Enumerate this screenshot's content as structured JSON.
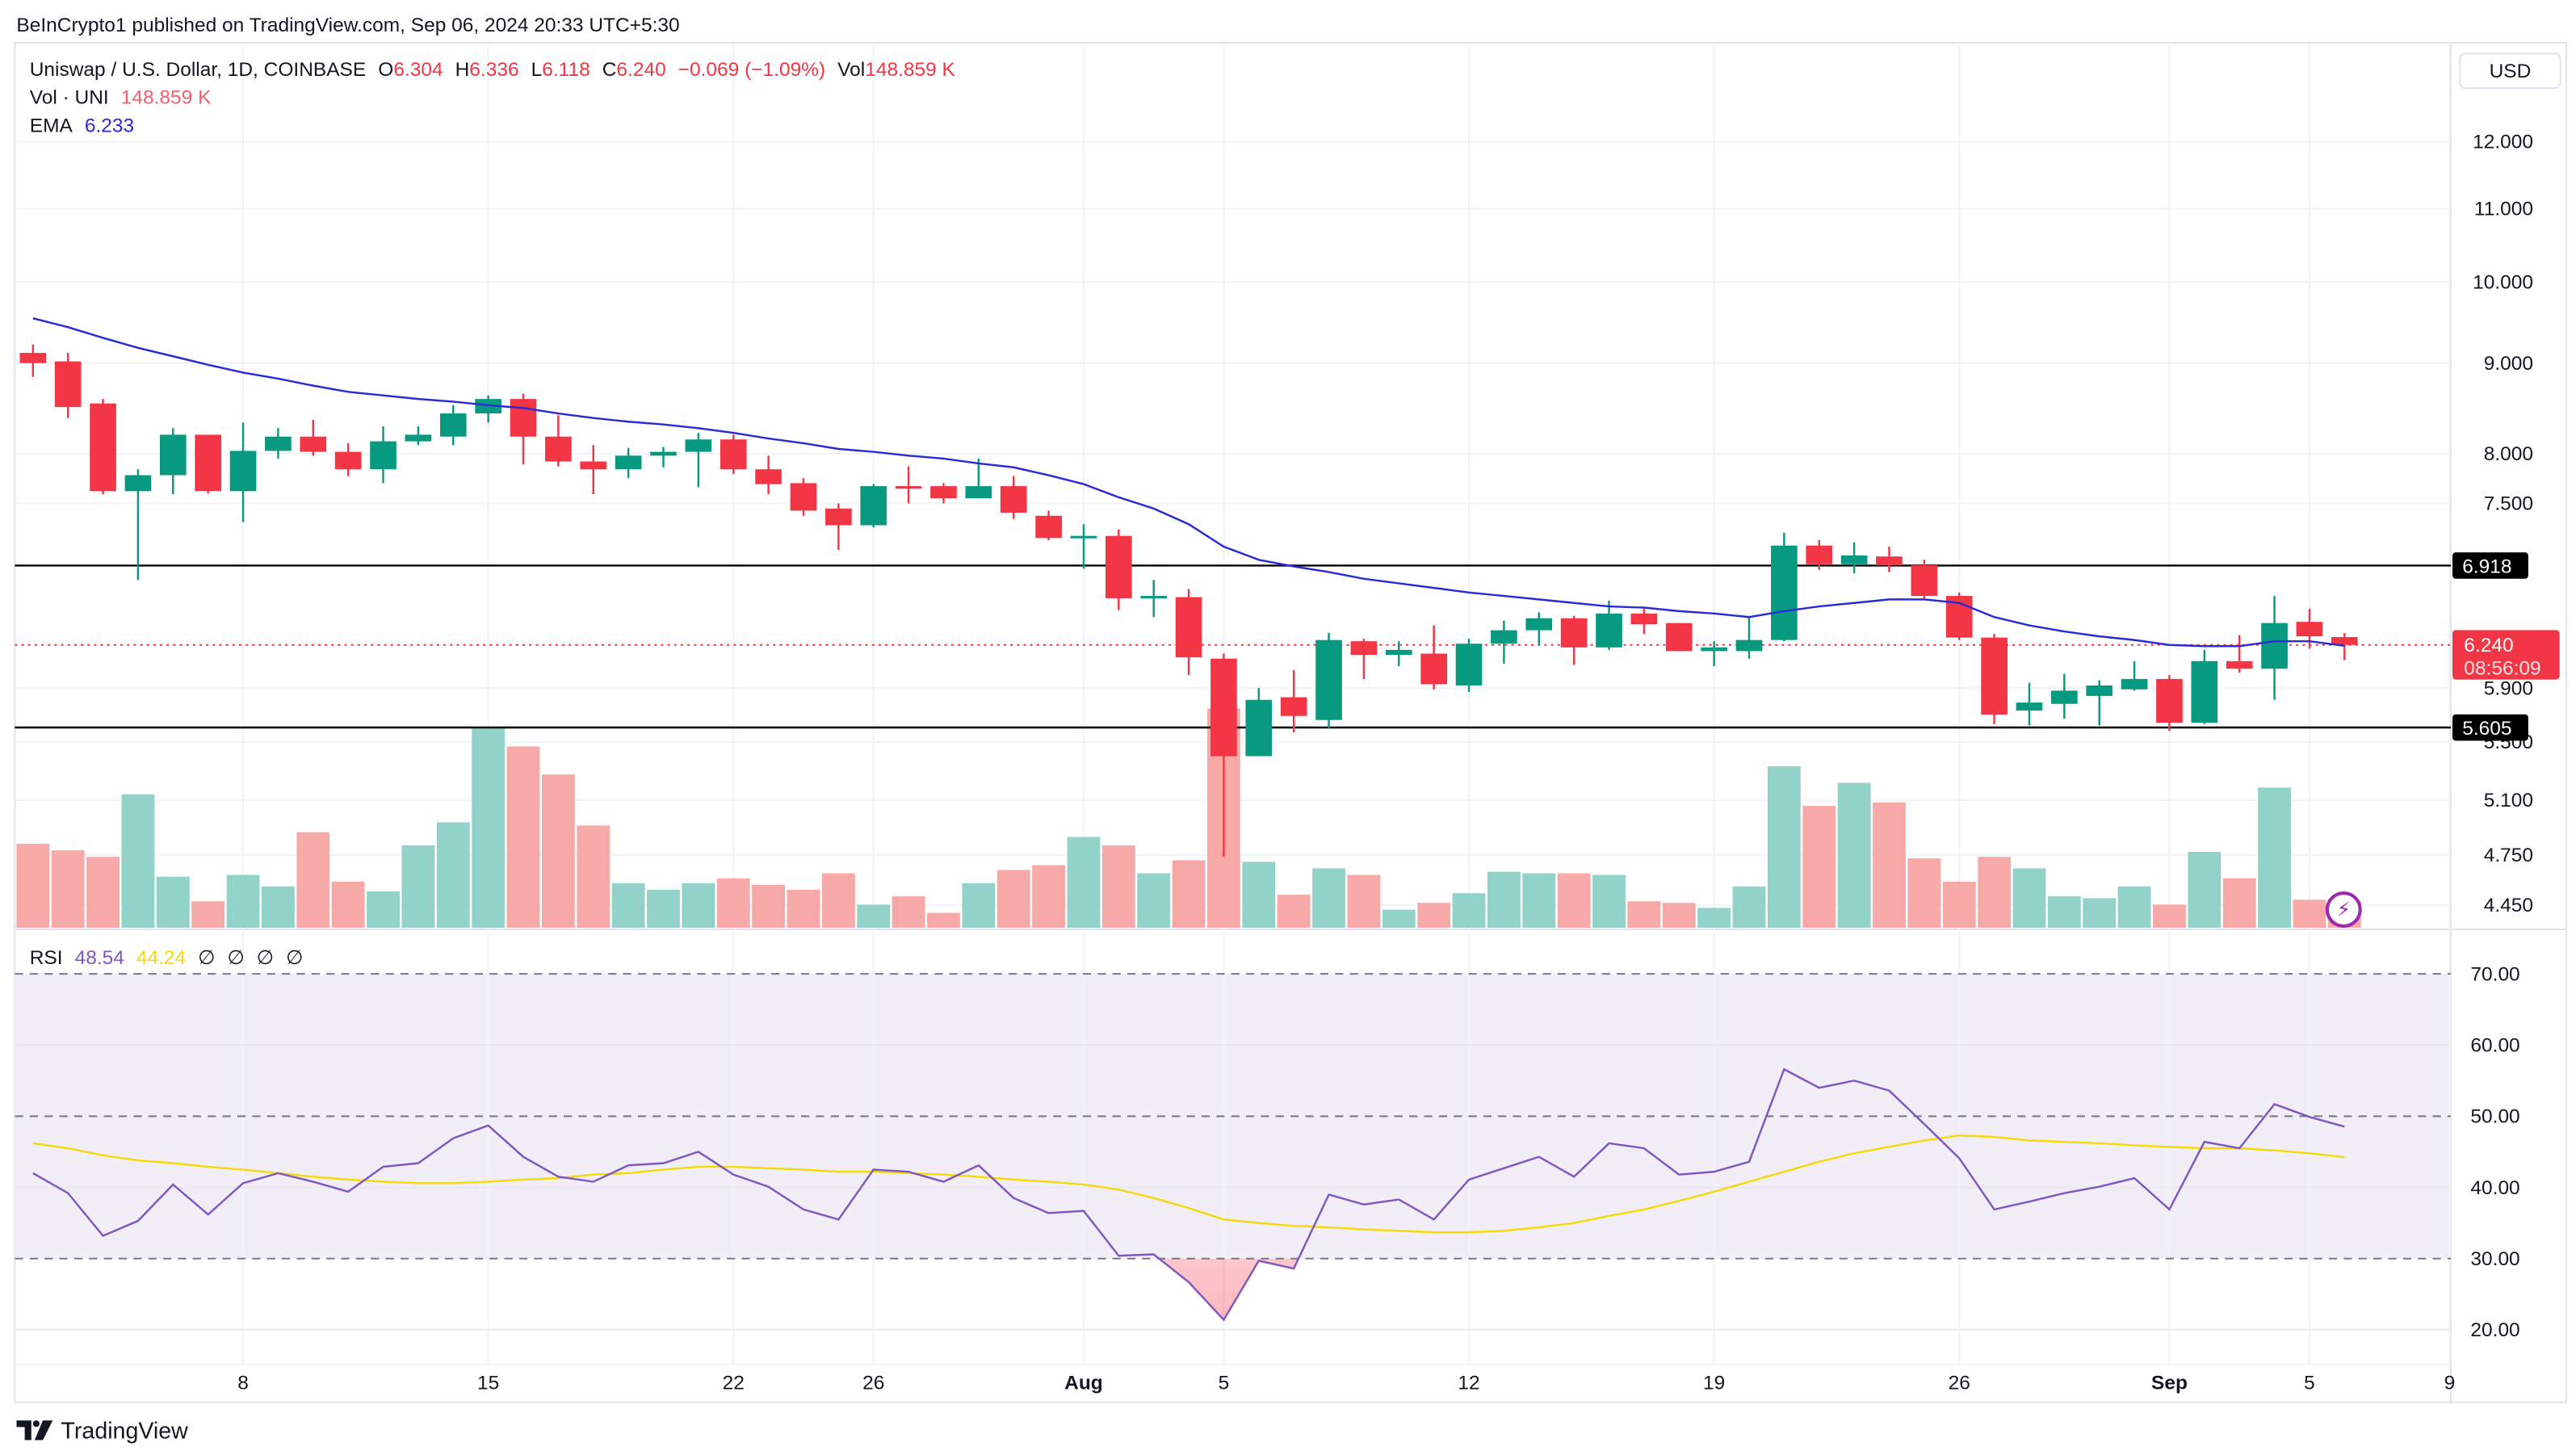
{
  "published": "BeInCrypto1 published on TradingView.com, Sep 06, 2024 20:33 UTC+5:30",
  "legend": {
    "symbol": "Uniswap / U.S. Dollar, 1D, COINBASE",
    "o_label": "O",
    "o": "6.304",
    "h_label": "H",
    "h": "6.336",
    "l_label": "L",
    "l": "6.118",
    "c_label": "C",
    "c": "6.240",
    "change": "−0.069 (−1.09%)",
    "vol_label": "Vol",
    "vol": "148.859 K",
    "vol_ind_label": "Vol · UNI",
    "vol_ind": "148.859 K",
    "ema_label": "EMA",
    "ema": "6.233",
    "rsi_label": "RSI",
    "rsi": "48.54",
    "rsi_ma": "44.24",
    "rsi_empty": [
      "∅",
      "∅",
      "∅",
      "∅"
    ]
  },
  "currency_button": "USD",
  "logo": "TradingView",
  "icons": {
    "alert": "lightning-icon",
    "logo": "tradingview-logo-icon"
  },
  "colors": {
    "up": "#089981",
    "down": "#f23645",
    "up_volume": "#92d2c9",
    "down_volume": "#f7a9a7",
    "ema": "#2a2ad8",
    "rsi": "#7e57c2",
    "rsi_ma": "#f5d90a",
    "rsi_band": "#f1eef8",
    "level_lines": "#000000",
    "alert": "#9c27b0"
  },
  "chart_data": {
    "type": "candlestick",
    "price_scale": "log",
    "grid": true,
    "price_ticks": [
      "12.000",
      "11.000",
      "10.000",
      "9.000",
      "8.000",
      "7.500",
      "5.900",
      "5.500",
      "5.100",
      "4.750",
      "4.450"
    ],
    "horizontal_levels": [
      "6.918",
      "5.605"
    ],
    "last_price": {
      "value": "6.240",
      "countdown": "08:56:09"
    },
    "x_ticks": [
      {
        "date": "2024-07-08",
        "label": "8"
      },
      {
        "date": "2024-07-15",
        "label": "15"
      },
      {
        "date": "2024-07-22",
        "label": "22"
      },
      {
        "date": "2024-07-26",
        "label": "26"
      },
      {
        "date": "2024-08-01",
        "label": "Aug"
      },
      {
        "date": "2024-08-05",
        "label": "5"
      },
      {
        "date": "2024-08-12",
        "label": "12"
      },
      {
        "date": "2024-08-19",
        "label": "19"
      },
      {
        "date": "2024-08-26",
        "label": "26"
      },
      {
        "date": "2024-09-01",
        "label": "Sep"
      },
      {
        "date": "2024-09-05",
        "label": "5"
      },
      {
        "date": "2024-09-09",
        "label": "9"
      }
    ],
    "fields": [
      "date",
      "open",
      "high",
      "low",
      "close",
      "volume_k"
    ],
    "candles": [
      [
        "2024-07-02",
        9.12,
        9.22,
        8.84,
        9.0,
        474
      ],
      [
        "2024-07-03",
        9.02,
        9.12,
        8.38,
        8.5,
        437
      ],
      [
        "2024-07-04",
        8.54,
        8.59,
        7.59,
        7.62,
        400
      ],
      [
        "2024-07-05",
        7.62,
        7.84,
        6.79,
        7.78,
        753
      ],
      [
        "2024-07-06",
        7.78,
        8.27,
        7.59,
        8.2,
        288
      ],
      [
        "2024-07-07",
        8.2,
        8.2,
        7.6,
        7.62,
        149
      ],
      [
        "2024-07-08",
        7.62,
        8.33,
        7.32,
        8.03,
        298
      ],
      [
        "2024-07-09",
        8.03,
        8.27,
        7.95,
        8.18,
        233
      ],
      [
        "2024-07-10",
        8.18,
        8.36,
        7.98,
        8.02,
        539
      ],
      [
        "2024-07-11",
        8.02,
        8.11,
        7.77,
        7.84,
        260
      ],
      [
        "2024-07-12",
        7.84,
        8.29,
        7.7,
        8.13,
        205
      ],
      [
        "2024-07-13",
        8.13,
        8.29,
        8.09,
        8.2,
        465
      ],
      [
        "2024-07-14",
        8.18,
        8.52,
        8.09,
        8.43,
        595
      ],
      [
        "2024-07-15",
        8.43,
        8.63,
        8.33,
        8.59,
        1135
      ],
      [
        "2024-07-16",
        8.59,
        8.65,
        7.89,
        8.18,
        1023
      ],
      [
        "2024-07-17",
        8.18,
        8.41,
        7.87,
        7.92,
        865
      ],
      [
        "2024-07-18",
        7.92,
        8.09,
        7.59,
        7.84,
        577
      ],
      [
        "2024-07-19",
        7.84,
        8.06,
        7.75,
        7.98,
        251
      ],
      [
        "2024-07-20",
        7.98,
        8.07,
        7.86,
        8.02,
        214
      ],
      [
        "2024-07-21",
        8.02,
        8.22,
        7.66,
        8.15,
        251
      ],
      [
        "2024-07-22",
        8.15,
        8.2,
        7.79,
        7.84,
        279
      ],
      [
        "2024-07-23",
        7.84,
        7.98,
        7.59,
        7.69,
        242
      ],
      [
        "2024-07-24",
        7.7,
        7.75,
        7.38,
        7.43,
        214
      ],
      [
        "2024-07-25",
        7.45,
        7.5,
        7.06,
        7.29,
        307
      ],
      [
        "2024-07-26",
        7.29,
        7.69,
        7.27,
        7.67,
        130
      ],
      [
        "2024-07-27",
        7.67,
        7.87,
        7.5,
        7.65,
        177
      ],
      [
        "2024-07-28",
        7.67,
        7.7,
        7.5,
        7.55,
        84
      ],
      [
        "2024-07-29",
        7.55,
        7.95,
        7.55,
        7.67,
        251
      ],
      [
        "2024-07-30",
        7.67,
        7.77,
        7.35,
        7.41,
        326
      ],
      [
        "2024-07-31",
        7.38,
        7.43,
        7.15,
        7.17,
        353
      ],
      [
        "2024-08-01",
        7.17,
        7.3,
        6.89,
        7.19,
        512
      ],
      [
        "2024-08-02",
        7.19,
        7.25,
        6.53,
        6.63,
        465
      ],
      [
        "2024-08-03",
        6.64,
        6.79,
        6.47,
        6.65,
        307
      ],
      [
        "2024-08-04",
        6.64,
        6.71,
        6.0,
        6.14,
        381
      ],
      [
        "2024-08-05",
        6.13,
        6.17,
        4.74,
        5.4,
        1237
      ],
      [
        "2024-08-06",
        5.4,
        5.9,
        5.4,
        5.81,
        372
      ],
      [
        "2024-08-07",
        5.83,
        6.04,
        5.57,
        5.69,
        186
      ],
      [
        "2024-08-08",
        5.66,
        6.34,
        5.6,
        6.28,
        335
      ],
      [
        "2024-08-09",
        6.27,
        6.29,
        5.97,
        6.16,
        298
      ],
      [
        "2024-08-10",
        6.16,
        6.27,
        6.07,
        6.2,
        102
      ],
      [
        "2024-08-11",
        6.17,
        6.4,
        5.89,
        5.93,
        140
      ],
      [
        "2024-08-12",
        5.92,
        6.29,
        5.87,
        6.25,
        195
      ],
      [
        "2024-08-13",
        6.25,
        6.44,
        6.09,
        6.36,
        316
      ],
      [
        "2024-08-14",
        6.36,
        6.51,
        6.24,
        6.46,
        307
      ],
      [
        "2024-08-15",
        6.46,
        6.48,
        6.08,
        6.22,
        307
      ],
      [
        "2024-08-16",
        6.22,
        6.61,
        6.2,
        6.5,
        298
      ],
      [
        "2024-08-17",
        6.5,
        6.54,
        6.33,
        6.41,
        149
      ],
      [
        "2024-08-18",
        6.42,
        6.42,
        6.19,
        6.19,
        140
      ],
      [
        "2024-08-19",
        6.19,
        6.27,
        6.07,
        6.22,
        112
      ],
      [
        "2024-08-20",
        6.19,
        6.48,
        6.13,
        6.28,
        233
      ],
      [
        "2024-08-21",
        6.28,
        7.22,
        6.27,
        7.1,
        911
      ],
      [
        "2024-08-22",
        7.1,
        7.15,
        6.88,
        6.93,
        688
      ],
      [
        "2024-08-23",
        6.93,
        7.13,
        6.85,
        7.01,
        818
      ],
      [
        "2024-08-24",
        7.0,
        7.09,
        6.86,
        6.92,
        707
      ],
      [
        "2024-08-25",
        6.92,
        6.97,
        6.63,
        6.65,
        391
      ],
      [
        "2024-08-26",
        6.65,
        6.68,
        6.28,
        6.3,
        260
      ],
      [
        "2024-08-27",
        6.3,
        6.33,
        5.63,
        5.7,
        400
      ],
      [
        "2024-08-28",
        5.73,
        5.94,
        5.62,
        5.79,
        335
      ],
      [
        "2024-08-29",
        5.78,
        6.01,
        5.67,
        5.88,
        177
      ],
      [
        "2024-08-30",
        5.84,
        5.96,
        5.62,
        5.92,
        167
      ],
      [
        "2024-08-31",
        5.89,
        6.11,
        5.88,
        5.97,
        233
      ],
      [
        "2024-09-01",
        5.97,
        6.0,
        5.58,
        5.64,
        130
      ],
      [
        "2024-09-02",
        5.64,
        6.2,
        5.63,
        6.11,
        428
      ],
      [
        "2024-09-03",
        6.11,
        6.32,
        6.02,
        6.05,
        279
      ],
      [
        "2024-09-04",
        6.05,
        6.65,
        5.81,
        6.42,
        791
      ],
      [
        "2024-09-05",
        6.43,
        6.54,
        6.21,
        6.31,
        158
      ],
      [
        "2024-09-06",
        6.304,
        6.336,
        6.118,
        6.24,
        148.859
      ]
    ],
    "ema": [
      9.54,
      9.43,
      9.3,
      9.18,
      9.08,
      8.98,
      8.89,
      8.82,
      8.74,
      8.67,
      8.63,
      8.59,
      8.56,
      8.52,
      8.49,
      8.43,
      8.38,
      8.34,
      8.31,
      8.27,
      8.22,
      8.16,
      8.11,
      8.05,
      8.02,
      7.98,
      7.95,
      7.9,
      7.86,
      7.78,
      7.69,
      7.56,
      7.45,
      7.3,
      7.09,
      6.97,
      6.91,
      6.86,
      6.8,
      6.76,
      6.72,
      6.68,
      6.65,
      6.62,
      6.59,
      6.56,
      6.55,
      6.52,
      6.5,
      6.47,
      6.52,
      6.56,
      6.59,
      6.62,
      6.62,
      6.59,
      6.47,
      6.4,
      6.35,
      6.31,
      6.28,
      6.24,
      6.23,
      6.23,
      6.27,
      6.27,
      6.233
    ],
    "rsi": {
      "ticks": [
        "70.00",
        "60.00",
        "50.00",
        "40.00",
        "30.00",
        "20.00"
      ],
      "bands": [
        70,
        50,
        30
      ],
      "values": [
        42,
        39.2,
        33.2,
        35.3,
        40.4,
        36.2,
        40.6,
        42,
        40.8,
        39.4,
        42.9,
        43.4,
        46.9,
        48.7,
        44.3,
        41.5,
        40.8,
        43.1,
        43.4,
        45,
        41.8,
        40.1,
        36.9,
        35.5,
        42.5,
        42.2,
        40.8,
        43.1,
        38.5,
        36.4,
        36.7,
        30.4,
        30.6,
        26.7,
        21.4,
        29.7,
        28.6,
        39,
        37.6,
        38.3,
        35.5,
        41.1,
        42.7,
        44.3,
        41.5,
        46.2,
        45.5,
        41.8,
        42.2,
        43.6,
        56.6,
        54,
        55,
        53.6,
        48.9,
        44.1,
        36.9,
        38,
        39.2,
        40.1,
        41.3,
        36.9,
        46.4,
        45.5,
        51.7,
        49.9,
        48.54
      ],
      "ma": [
        46.2,
        45.5,
        44.5,
        43.8,
        43.4,
        42.9,
        42.5,
        42.0,
        41.5,
        41.1,
        40.8,
        40.6,
        40.6,
        40.8,
        41.1,
        41.3,
        41.8,
        42.0,
        42.5,
        42.9,
        42.9,
        42.7,
        42.5,
        42.2,
        42.2,
        42.0,
        41.8,
        41.5,
        41.1,
        40.8,
        40.4,
        39.7,
        38.5,
        37.1,
        35.5,
        35.0,
        34.6,
        34.4,
        34.1,
        33.9,
        33.7,
        33.7,
        33.9,
        34.4,
        35.0,
        36.0,
        36.9,
        38.1,
        39.4,
        40.8,
        42.2,
        43.6,
        44.8,
        45.7,
        46.6,
        47.3,
        47.1,
        46.6,
        46.4,
        46.2,
        45.9,
        45.7,
        45.5,
        45.5,
        45.2,
        44.8,
        44.24
      ]
    }
  }
}
